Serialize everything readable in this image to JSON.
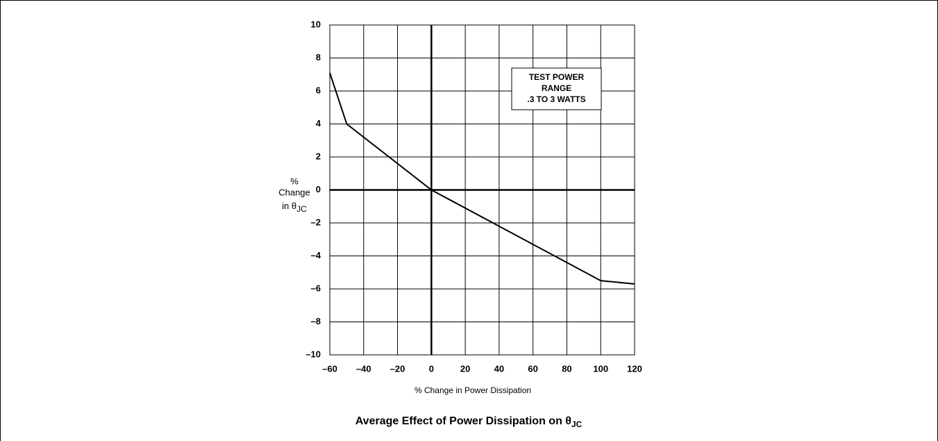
{
  "chart_data": {
    "type": "line",
    "title": "Average Effect of Power Dissipation on θ",
    "title_subscript": "JC",
    "x_label": "% Change in Power Dissipation",
    "y_label": [
      "%",
      "Change",
      "in θ"
    ],
    "y_label_subscript": "JC",
    "annotation": [
      "TEST POWER",
      "RANGE",
      ".3 TO 3 WATTS"
    ],
    "series": [
      {
        "color": "#000000",
        "x": [
          -60,
          -50,
          0,
          100,
          120
        ],
        "values": [
          7.1,
          4,
          0,
          -5.5,
          -5.7
        ]
      }
    ],
    "xlim": [
      -60,
      120
    ],
    "xticks": [
      {
        "value": -60,
        "label": "–60"
      },
      {
        "value": -40,
        "label": "–40"
      },
      {
        "value": -20,
        "label": "–20"
      },
      0,
      20,
      40,
      60,
      80,
      100,
      120
    ],
    "ylim": [
      -10,
      10
    ],
    "yticks": [
      {
        "value": -10,
        "label": "–10"
      },
      {
        "value": -8,
        "label": "–8"
      },
      {
        "value": -6,
        "label": "–6"
      },
      {
        "value": -4,
        "label": "–4"
      },
      {
        "value": -2,
        "label": "–2"
      },
      0,
      2,
      4,
      6,
      8,
      10
    ],
    "grid": true
  }
}
